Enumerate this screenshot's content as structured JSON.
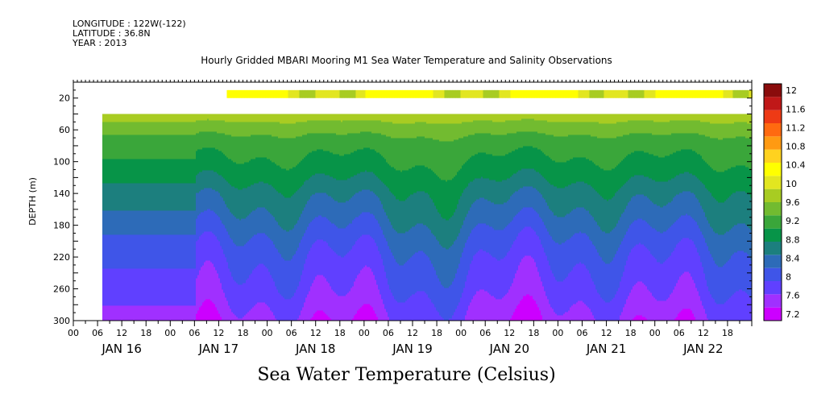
{
  "header": {
    "longitude": "LONGITUDE : 122W(-122)",
    "latitude": "LATITUDE : 36.8N",
    "year": "YEAR : 2013"
  },
  "chart_data": {
    "type": "heatmap",
    "title": "Hourly Gridded MBARI Mooring M1 Sea Water Temperature and Salinity Observations",
    "footer": "Sea Water Temperature (Celsius)",
    "ylabel": "DEPTH (m)",
    "ylim": [
      300,
      0
    ],
    "y_ticks": [
      "20",
      "60",
      "100",
      "140",
      "180",
      "220",
      "260",
      "300"
    ],
    "y_tick_values": [
      20,
      60,
      100,
      140,
      180,
      220,
      260,
      300
    ],
    "x_hour_labels": [
      "00",
      "06",
      "12",
      "18",
      "00",
      "06",
      "12",
      "18",
      "00",
      "06",
      "12",
      "18",
      "00",
      "06",
      "12",
      "18",
      "00",
      "06",
      "12",
      "18",
      "00",
      "06",
      "12",
      "18",
      "00",
      "06",
      "12",
      "18"
    ],
    "x_day_labels": [
      "JAN 16",
      "JAN 17",
      "JAN 18",
      "JAN 19",
      "JAN 20",
      "JAN 21",
      "JAN 22"
    ],
    "x_range_days": [
      "JAN 16 00",
      "JAN 22 24"
    ],
    "colorbar_levels": [
      "7.2",
      "7.6",
      "8",
      "8.4",
      "8.8",
      "9.2",
      "9.6",
      "10",
      "10.4",
      "10.8",
      "11.2",
      "11.6",
      "12"
    ],
    "colors": [
      "#cc00ff",
      "#a030ff",
      "#6040ff",
      "#3f55e8",
      "#2d6bb8",
      "#1c7f7e",
      "#079448",
      "#3aa63a",
      "#72bb30",
      "#a8cc22",
      "#e2e620",
      "#ffff00",
      "#ffd21f",
      "#ff9a12",
      "#ff6a10",
      "#ee3a15",
      "#c01818",
      "#8a0c0c"
    ],
    "depth_profile_temp": [
      {
        "depth": 10,
        "temp": 11.2
      },
      {
        "depth": 45,
        "temp": 10.5
      },
      {
        "depth": 60,
        "temp": 10.1
      },
      {
        "depth": 80,
        "temp": 9.75
      },
      {
        "depth": 100,
        "temp": 9.55
      },
      {
        "depth": 120,
        "temp": 9.3
      },
      {
        "depth": 140,
        "temp": 9.0
      },
      {
        "depth": 160,
        "temp": 8.8
      },
      {
        "depth": 180,
        "temp": 8.55
      },
      {
        "depth": 200,
        "temp": 8.3
      },
      {
        "depth": 220,
        "temp": 8.1
      },
      {
        "depth": 240,
        "temp": 7.95
      },
      {
        "depth": 260,
        "temp": 7.8
      },
      {
        "depth": 280,
        "temp": 7.6
      },
      {
        "depth": 300,
        "temp": 7.4
      }
    ],
    "surface_data_start": "JAN 17 14",
    "subsurface_data_start": "JAN 16 07",
    "subsurface_top_depth": 40,
    "surface_band_depth": [
      10,
      20
    ]
  }
}
